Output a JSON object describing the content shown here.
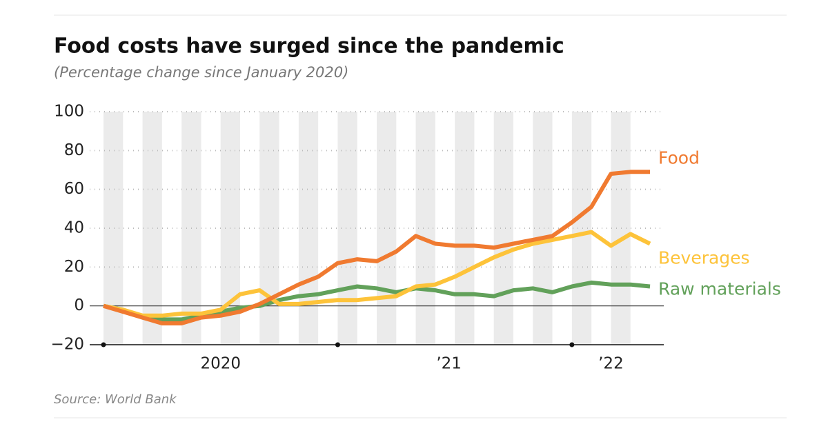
{
  "chart_data": {
    "type": "line",
    "title": "Food costs have surged since the pandemic",
    "subtitle": "(Percentage change since January 2020)",
    "source": "Source: World Bank",
    "categories": [
      null,
      null,
      null,
      null,
      null,
      null,
      null,
      null,
      null,
      null,
      null,
      null,
      null,
      null,
      null,
      null,
      null,
      null,
      null,
      null,
      null,
      null,
      null,
      null,
      null,
      null,
      null,
      null,
      null
    ],
    "xticks": [
      {
        "value": 6,
        "label": "2020"
      },
      {
        "value": 17.7,
        "label": "’21"
      },
      {
        "value": 26,
        "label": "’22"
      }
    ],
    "ylim": [
      -20,
      100
    ],
    "yticks": [
      {
        "value": -20,
        "label": "−20"
      },
      0,
      20,
      40,
      60,
      80,
      100
    ],
    "grid": true,
    "series": [
      {
        "name": "Food",
        "color": "#f07a30",
        "values": [
          0,
          -3,
          -6,
          -9,
          -9,
          -6,
          -5,
          -3,
          1,
          6,
          11,
          15,
          22,
          24,
          23,
          28,
          36,
          32,
          31,
          31,
          30,
          32,
          34,
          36,
          43,
          51,
          68,
          69,
          69
        ]
      },
      {
        "name": "Beverages",
        "color": "#fdc33a",
        "values": [
          0,
          -2,
          -5,
          -5,
          -4,
          -4,
          -2,
          6,
          8,
          1,
          1,
          2,
          3,
          3,
          4,
          5,
          10,
          11,
          15,
          20,
          25,
          29,
          32,
          34,
          36,
          38,
          31,
          37,
          32
        ]
      },
      {
        "name": "Raw materials",
        "color": "#62a15a",
        "values": [
          0,
          -2,
          -6,
          -7,
          -7,
          -5,
          -3,
          -1,
          0,
          3,
          5,
          6,
          8,
          10,
          9,
          7,
          9,
          8,
          6,
          6,
          5,
          8,
          9,
          7,
          10,
          12,
          11,
          11,
          10
        ]
      }
    ]
  }
}
